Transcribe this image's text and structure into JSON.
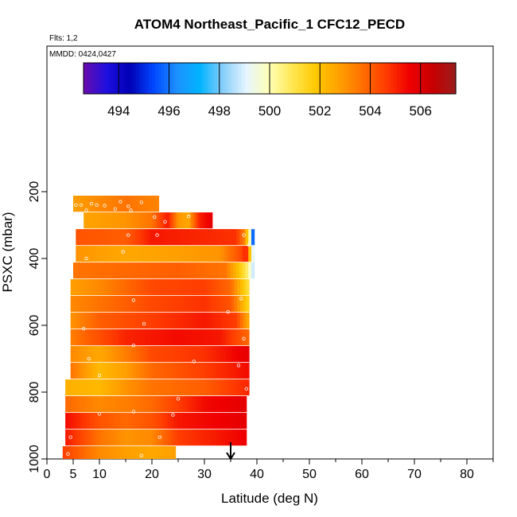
{
  "header": {
    "title": "ATOM4 Northeast_Pacific_1 CFC12_PECD",
    "flights_label": "Flts: 1,2",
    "dates_label": "MMDD: 0424,0427"
  },
  "colorbar": {
    "min": 492.6,
    "max": 507.4,
    "ticks": [
      494,
      496,
      498,
      500,
      502,
      504,
      506
    ],
    "colors": [
      "#6a0dad",
      "#1d0fe0",
      "#0000b4",
      "#0046ff",
      "#1e90ff",
      "#00b4ff",
      "#87cefa",
      "#e6f5ff",
      "#ffffb4",
      "#ffe650",
      "#ffc800",
      "#ffa000",
      "#ff6e00",
      "#ff3c00",
      "#f00000",
      "#c80000",
      "#9b1c1c"
    ]
  },
  "chart_data": {
    "type": "heatmap",
    "title": "ATOM4 Northeast_Pacific_1 CFC12_PECD",
    "xlabel": "Latitude (deg N)",
    "ylabel": "PSXC (mbar)",
    "xlim": [
      0,
      85
    ],
    "ylim": [
      1000,
      100
    ],
    "xticks": [
      0,
      5,
      10,
      20,
      30,
      40,
      50,
      60,
      70,
      80
    ],
    "yticks": [
      200,
      400,
      600,
      800,
      1000
    ],
    "arrow_marker_lat": 35,
    "bands": [
      {
        "p_top": 212,
        "p_bot": 260,
        "lat_min": 5,
        "lat_max": 21.3,
        "segments": [
          [
            5,
            502.8
          ],
          [
            10,
            503.2
          ],
          [
            15,
            503.6
          ],
          [
            21.3,
            503.3
          ]
        ]
      },
      {
        "p_top": 262,
        "p_bot": 310,
        "lat_min": 7,
        "lat_max": 31.5,
        "segments": [
          [
            7,
            502.7
          ],
          [
            15,
            503.0
          ],
          [
            20,
            503.6
          ],
          [
            23,
            505.2
          ],
          [
            25,
            503.0
          ],
          [
            27,
            502.6
          ],
          [
            29,
            505.0
          ],
          [
            31.5,
            505.8
          ]
        ]
      },
      {
        "p_top": 312,
        "p_bot": 360,
        "lat_min": 5.5,
        "lat_max": 39.5,
        "segments": [
          [
            5.5,
            504.2
          ],
          [
            15,
            504.0
          ],
          [
            20,
            505.2
          ],
          [
            28,
            505.0
          ],
          [
            36,
            504.8
          ],
          [
            37.5,
            503.5
          ],
          [
            38.5,
            501.0
          ],
          [
            39.5,
            493.8
          ]
        ]
      },
      {
        "p_top": 362,
        "p_bot": 410,
        "lat_min": 5.5,
        "lat_max": 39.5,
        "segments": [
          [
            5.5,
            503.0
          ],
          [
            15,
            502.6
          ],
          [
            25,
            502.8
          ],
          [
            33,
            503.0
          ],
          [
            37,
            504.4
          ],
          [
            38,
            505.2
          ],
          [
            39.5,
            497.8
          ]
        ]
      },
      {
        "p_top": 412,
        "p_bot": 460,
        "lat_min": 5,
        "lat_max": 39.5,
        "segments": [
          [
            5,
            503.6
          ],
          [
            15,
            503.8
          ],
          [
            25,
            504.0
          ],
          [
            34,
            503.6
          ],
          [
            36.5,
            502.0
          ],
          [
            38,
            500.8
          ],
          [
            39.5,
            498.4
          ]
        ]
      },
      {
        "p_top": 462,
        "p_bot": 510,
        "lat_min": 4.5,
        "lat_max": 38.5,
        "segments": [
          [
            4.5,
            502.8
          ],
          [
            10,
            503.2
          ],
          [
            20,
            504.4
          ],
          [
            30,
            504.6
          ],
          [
            35,
            503.8
          ],
          [
            37,
            502.2
          ],
          [
            38.5,
            501.0
          ]
        ]
      },
      {
        "p_top": 512,
        "p_bot": 560,
        "lat_min": 4.5,
        "lat_max": 38.5,
        "segments": [
          [
            4.5,
            503.2
          ],
          [
            10,
            503.6
          ],
          [
            20,
            504.4
          ],
          [
            30,
            504.8
          ],
          [
            35,
            504.2
          ],
          [
            37,
            502.6
          ],
          [
            38.5,
            501.4
          ]
        ]
      },
      {
        "p_top": 562,
        "p_bot": 610,
        "lat_min": 4.5,
        "lat_max": 38.5,
        "segments": [
          [
            4.5,
            503.0
          ],
          [
            10,
            504.0
          ],
          [
            20,
            504.6
          ],
          [
            30,
            505.2
          ],
          [
            36,
            504.6
          ],
          [
            38.5,
            502.4
          ]
        ]
      },
      {
        "p_top": 612,
        "p_bot": 660,
        "lat_min": 4.5,
        "lat_max": 38.5,
        "segments": [
          [
            4.5,
            503.4
          ],
          [
            8,
            504.0
          ],
          [
            15,
            505.0
          ],
          [
            25,
            505.4
          ],
          [
            33,
            505.2
          ],
          [
            38.5,
            503.8
          ]
        ]
      },
      {
        "p_top": 662,
        "p_bot": 710,
        "lat_min": 4.5,
        "lat_max": 38.5,
        "segments": [
          [
            4.5,
            503.2
          ],
          [
            10,
            502.6
          ],
          [
            15,
            503.4
          ],
          [
            20,
            504.4
          ],
          [
            30,
            504.8
          ],
          [
            38.5,
            505.8
          ]
        ]
      },
      {
        "p_top": 712,
        "p_bot": 760,
        "lat_min": 4.5,
        "lat_max": 38.5,
        "segments": [
          [
            4.5,
            503.6
          ],
          [
            10,
            502.2
          ],
          [
            15,
            502.8
          ],
          [
            20,
            503.8
          ],
          [
            30,
            504.6
          ],
          [
            38.5,
            505.4
          ]
        ]
      },
      {
        "p_top": 762,
        "p_bot": 810,
        "lat_min": 3.5,
        "lat_max": 38.5,
        "segments": [
          [
            3.5,
            502.4
          ],
          [
            10,
            502.2
          ],
          [
            15,
            503.0
          ],
          [
            20,
            503.6
          ],
          [
            30,
            504.0
          ],
          [
            38.5,
            505.0
          ]
        ]
      },
      {
        "p_top": 812,
        "p_bot": 860,
        "lat_min": 3.5,
        "lat_max": 38,
        "segments": [
          [
            3.5,
            503.8
          ],
          [
            10,
            503.2
          ],
          [
            15,
            503.4
          ],
          [
            20,
            503.8
          ],
          [
            25,
            504.6
          ],
          [
            30,
            505.4
          ],
          [
            38,
            505.8
          ]
        ]
      },
      {
        "p_top": 862,
        "p_bot": 910,
        "lat_min": 3.5,
        "lat_max": 38,
        "segments": [
          [
            3.5,
            505.4
          ],
          [
            10,
            504.2
          ],
          [
            15,
            503.8
          ],
          [
            20,
            504.2
          ],
          [
            25,
            505.2
          ],
          [
            38,
            505.8
          ]
        ]
      },
      {
        "p_top": 912,
        "p_bot": 960,
        "lat_min": 3.5,
        "lat_max": 38,
        "segments": [
          [
            3.5,
            505.2
          ],
          [
            10,
            503.6
          ],
          [
            15,
            503.0
          ],
          [
            20,
            503.2
          ],
          [
            25,
            504.6
          ],
          [
            38,
            505.6
          ]
        ]
      },
      {
        "p_top": 962,
        "p_bot": 1010,
        "lat_min": 3,
        "lat_max": 24.5,
        "segments": [
          [
            3,
            504.6
          ],
          [
            10,
            503.2
          ],
          [
            15,
            502.8
          ],
          [
            20,
            502.6
          ],
          [
            24.5,
            502.8
          ]
        ]
      }
    ],
    "sample_points": [
      [
        5.5,
        240
      ],
      [
        6.5,
        240
      ],
      [
        7.5,
        256
      ],
      [
        8.5,
        236
      ],
      [
        9.5,
        240
      ],
      [
        11,
        242
      ],
      [
        13,
        252
      ],
      [
        14,
        230
      ],
      [
        15.5,
        244
      ],
      [
        16,
        256
      ],
      [
        18,
        232
      ],
      [
        20.5,
        276
      ],
      [
        22.5,
        290
      ],
      [
        27,
        274
      ],
      [
        15.5,
        330
      ],
      [
        21,
        330
      ],
      [
        37.5,
        330
      ],
      [
        38.5,
        360
      ],
      [
        7.5,
        400
      ],
      [
        14.5,
        380
      ],
      [
        39.5,
        376
      ],
      [
        16.5,
        525
      ],
      [
        34.5,
        560
      ],
      [
        37,
        520
      ],
      [
        18.5,
        595
      ],
      [
        7,
        610
      ],
      [
        37.5,
        640
      ],
      [
        16.5,
        660
      ],
      [
        8,
        700
      ],
      [
        28,
        708
      ],
      [
        36.5,
        720
      ],
      [
        10,
        750
      ],
      [
        38,
        790
      ],
      [
        25,
        820
      ],
      [
        10,
        865
      ],
      [
        16.5,
        858
      ],
      [
        24,
        868
      ],
      [
        4.5,
        935
      ],
      [
        21.5,
        935
      ],
      [
        4,
        985
      ],
      [
        18,
        990
      ]
    ]
  }
}
